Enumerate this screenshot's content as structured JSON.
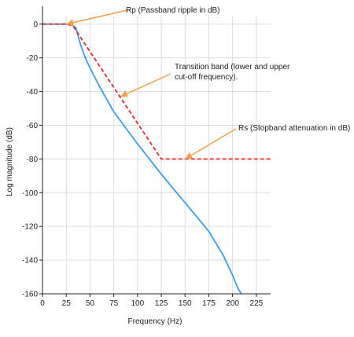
{
  "chart_data": {
    "type": "line",
    "xlabel": "Frequency (Hz)",
    "ylabel": "Log magnitude (dB)",
    "xlim": [
      0,
      240
    ],
    "ylim": [
      -160,
      5
    ],
    "x_ticks": [
      0,
      25,
      50,
      75,
      100,
      125,
      150,
      175,
      200,
      225
    ],
    "y_ticks": [
      0,
      -20,
      -40,
      -60,
      -80,
      -100,
      -120,
      -140,
      -160
    ],
    "grid": true,
    "series": [
      {
        "style": "solid",
        "color": "#3b9cf0",
        "x": [
          0,
          20,
          30,
          35,
          40,
          45,
          50,
          60,
          75,
          100,
          125,
          150,
          175,
          190,
          200,
          205,
          209
        ],
        "y": [
          0,
          0,
          0,
          -2,
          -12,
          -20,
          -26,
          -37,
          -52,
          -71,
          -89,
          -106,
          -123,
          -137,
          -149,
          -156,
          -160
        ]
      },
      {
        "style": "dashed",
        "color": "#e8292b",
        "x": [
          0,
          25,
          32,
          125,
          240
        ],
        "y": [
          0,
          0,
          -1,
          -80,
          -80
        ]
      }
    ],
    "annotations": [
      {
        "id": "rp",
        "text": "Rp (Passband ripple in dB)",
        "target": [
          25,
          0
        ]
      },
      {
        "id": "tb",
        "text": "Transition band (lower and upper cut-off frequency).",
        "target": [
          82,
          -43
        ]
      },
      {
        "id": "rs",
        "text": "Rs (Stopband attenuation in dB)",
        "target": [
          150,
          -80
        ]
      }
    ]
  },
  "colors": {
    "arrow": "#f5a04a",
    "axis": "#222222",
    "grid": "#dddddd"
  }
}
